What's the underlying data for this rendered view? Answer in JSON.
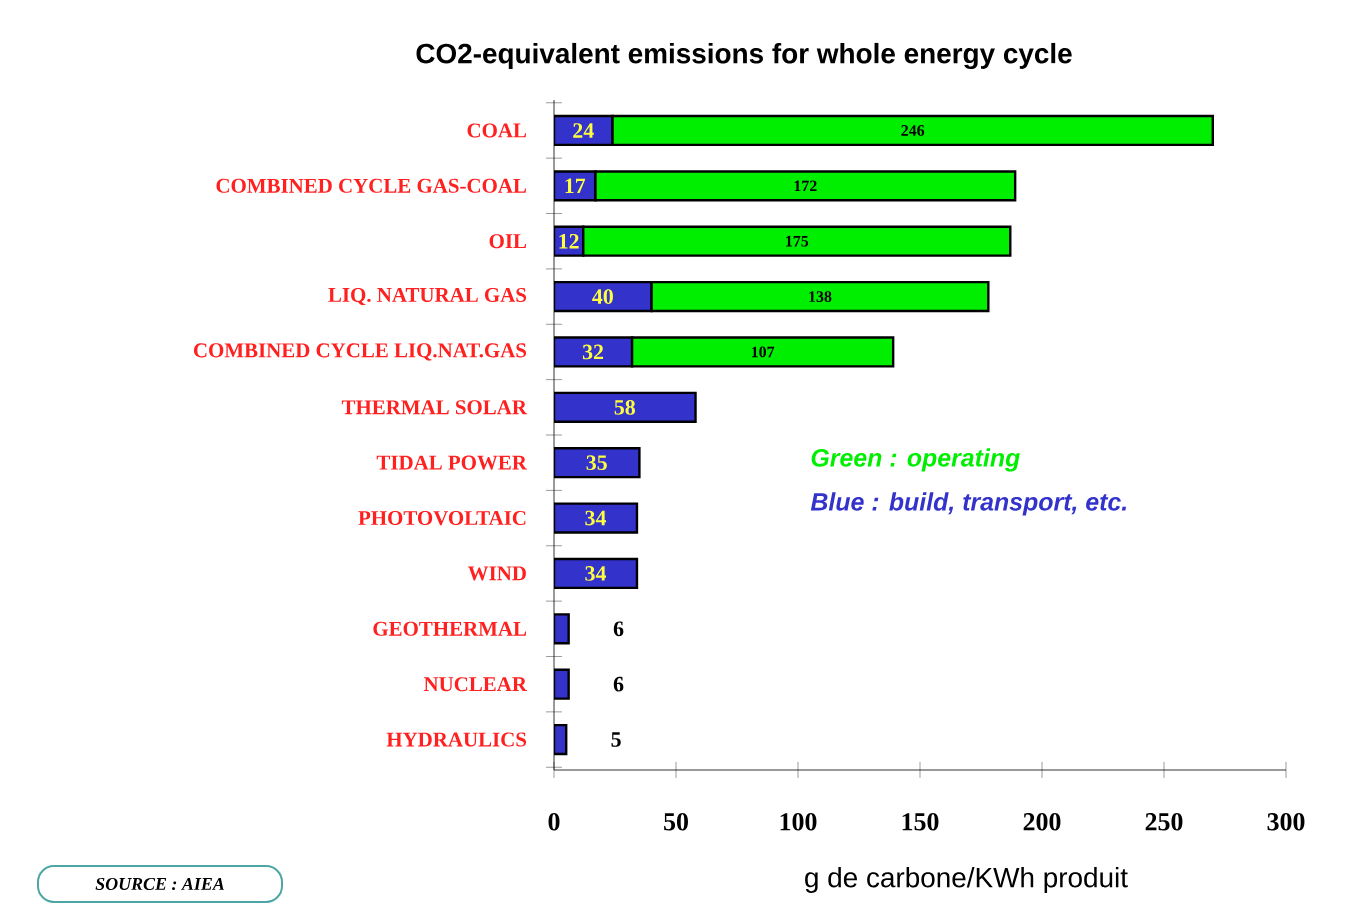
{
  "chart_data": {
    "type": "bar",
    "orientation": "horizontal",
    "stacked": true,
    "title": "CO2-equivalent emissions for whole energy cycle",
    "xlabel": "g de carbone/KWh produit",
    "categories": [
      "COAL",
      "COMBINED CYCLE GAS-COAL",
      "OIL",
      "LIQ. NATURAL GAS",
      "COMBINED CYCLE LIQ.NAT.GAS",
      "THERMAL SOLAR",
      "TIDAL POWER",
      "PHOTOVOLTAIC",
      "WIND",
      "GEOTHERMAL",
      "NUCLEAR",
      "HYDRAULICS"
    ],
    "series": [
      {
        "name": "Blue : build, transport, etc.",
        "color": "#3333cc",
        "values": [
          24,
          17,
          12,
          40,
          32,
          58,
          35,
          34,
          34,
          6,
          6,
          5
        ]
      },
      {
        "name": "Green : operating",
        "color": "#00ee00",
        "values": [
          246,
          172,
          175,
          138,
          107,
          null,
          null,
          null,
          null,
          null,
          null,
          null
        ]
      }
    ],
    "xlim": [
      0,
      300
    ],
    "xticks": [
      0,
      50,
      100,
      150,
      200,
      250,
      300
    ],
    "data_labels": true,
    "legend": "right",
    "grid": false,
    "annotations": [
      "SOURCE : AIEA"
    ]
  }
}
